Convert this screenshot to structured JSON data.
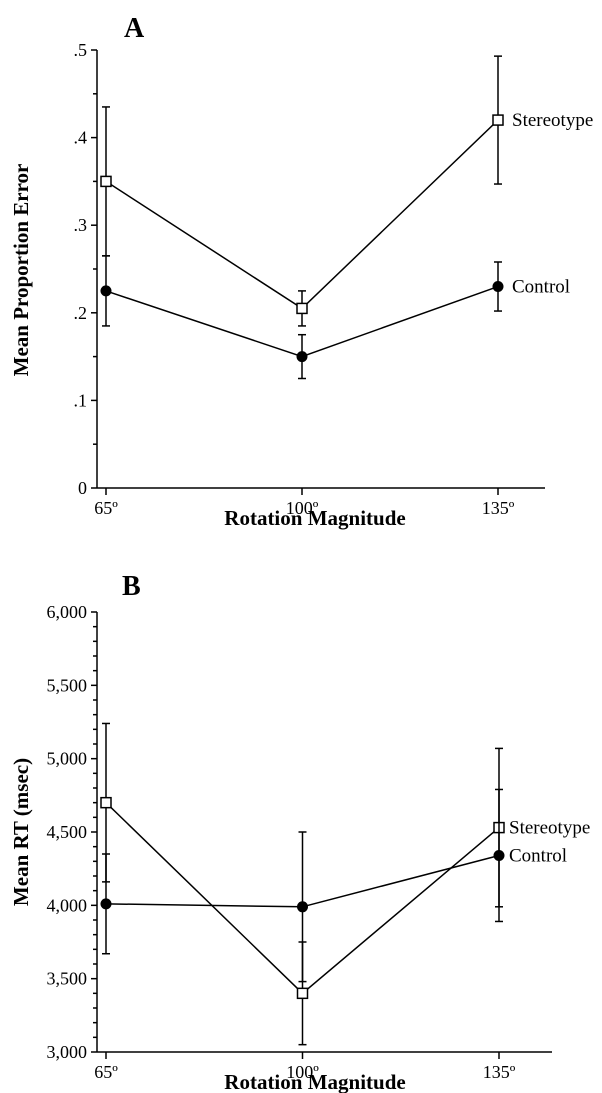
{
  "chart_data": [
    {
      "type": "line",
      "panel_label": "A",
      "title": "",
      "xlabel": "Rotation Magnitude",
      "ylabel": "Mean Proportion Error",
      "categories": [
        "65º",
        "100º",
        "135º"
      ],
      "x": [
        65,
        100,
        135
      ],
      "xlim": [
        65,
        150
      ],
      "ylim": [
        0,
        0.5
      ],
      "yticks": [
        0,
        0.1,
        0.2,
        0.3,
        0.4,
        0.5
      ],
      "ytick_labels": [
        "0",
        ".1",
        ".2",
        ".3",
        ".4",
        ".5"
      ],
      "grid": false,
      "legend_placement": "right, next to line ends",
      "series": [
        {
          "name": "Stereotype",
          "marker": "open-square",
          "values": [
            0.35,
            0.205,
            0.42
          ],
          "error": [
            0.085,
            0.02,
            0.073
          ]
        },
        {
          "name": "Control",
          "marker": "filled-circle",
          "values": [
            0.225,
            0.15,
            0.23
          ],
          "error": [
            0.04,
            0.025,
            0.028
          ]
        }
      ]
    },
    {
      "type": "line",
      "panel_label": "B",
      "title": "",
      "xlabel": "Rotation Magnitude",
      "ylabel": "Mean RT (msec)",
      "categories": [
        "65º",
        "100º",
        "135º"
      ],
      "x": [
        65,
        100,
        135
      ],
      "xlim": [
        65,
        142
      ],
      "ylim": [
        3000,
        6000
      ],
      "yticks": [
        3000,
        3500,
        4000,
        4500,
        5000,
        5500,
        6000
      ],
      "ytick_labels": [
        "3,000",
        "3,500",
        "4,000",
        "4,500",
        "5,000",
        "5,500",
        "6,000"
      ],
      "grid": false,
      "legend_placement": "right, next to line ends",
      "series": [
        {
          "name": "Stereotype",
          "marker": "open-square",
          "values": [
            4700,
            3400,
            4530
          ],
          "error": [
            540,
            350,
            540
          ]
        },
        {
          "name": "Control",
          "marker": "filled-circle",
          "values": [
            4010,
            3990,
            4340
          ],
          "error": [
            340,
            510,
            450
          ]
        }
      ]
    }
  ]
}
